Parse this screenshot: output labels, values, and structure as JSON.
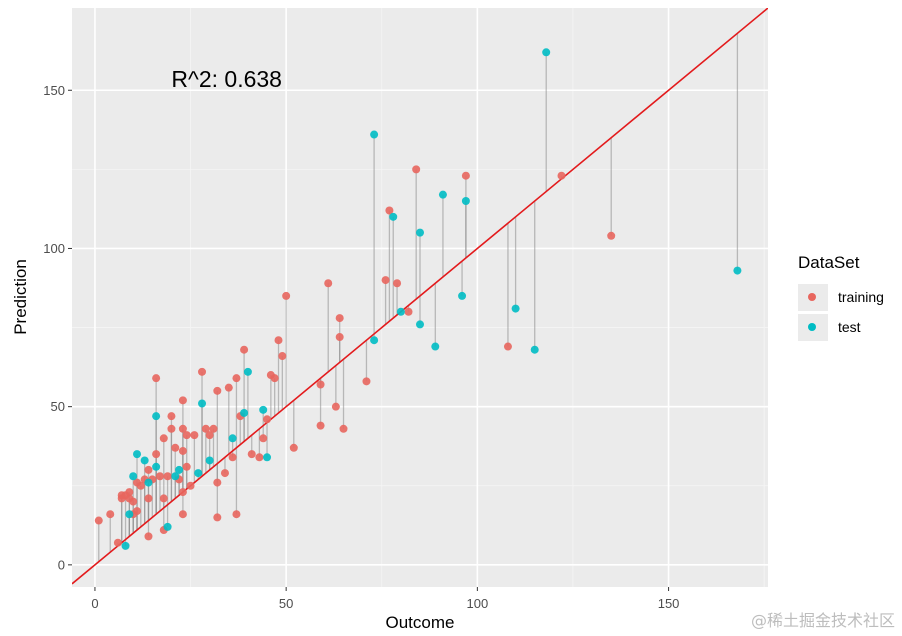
{
  "chart_data": {
    "type": "scatter",
    "xlabel": "Outcome",
    "ylabel": "Prediction",
    "xlim": [
      -6,
      176
    ],
    "ylim": [
      -7,
      176
    ],
    "x_ticks": [
      0,
      50,
      100,
      150
    ],
    "x_tick_labels": [
      "0",
      "50",
      "100",
      "150"
    ],
    "y_ticks": [
      0,
      50,
      100,
      150
    ],
    "y_tick_labels": [
      "0",
      "50",
      "100",
      "150"
    ],
    "annotation": {
      "text": "R^2: 0.638",
      "x": 20,
      "y": 151
    },
    "reference_line": {
      "type": "identity",
      "color": "#e31a1c"
    },
    "residual_segments": true,
    "grid": true,
    "legend": {
      "title": "DataSet",
      "position": "right",
      "entries": [
        {
          "label": "training",
          "color": "#e8665e"
        },
        {
          "label": "test",
          "color": "#00bcc4"
        }
      ]
    },
    "series": [
      {
        "name": "training",
        "color": "#e8665e",
        "points": [
          [
            1,
            14
          ],
          [
            4,
            16
          ],
          [
            6,
            7
          ],
          [
            7,
            22
          ],
          [
            7,
            21
          ],
          [
            8,
            22
          ],
          [
            9,
            21
          ],
          [
            9,
            23
          ],
          [
            10,
            20
          ],
          [
            10,
            16
          ],
          [
            11,
            26
          ],
          [
            11,
            17
          ],
          [
            12,
            25
          ],
          [
            13,
            27
          ],
          [
            14,
            9
          ],
          [
            14,
            21
          ],
          [
            14,
            30
          ],
          [
            15,
            27
          ],
          [
            16,
            59
          ],
          [
            16,
            35
          ],
          [
            17,
            28
          ],
          [
            18,
            21
          ],
          [
            18,
            40
          ],
          [
            18,
            11
          ],
          [
            19,
            28
          ],
          [
            20,
            47
          ],
          [
            20,
            43
          ],
          [
            21,
            37
          ],
          [
            22,
            27
          ],
          [
            23,
            52
          ],
          [
            23,
            43
          ],
          [
            23,
            36
          ],
          [
            23,
            23
          ],
          [
            23,
            16
          ],
          [
            24,
            41
          ],
          [
            24,
            31
          ],
          [
            25,
            25
          ],
          [
            26,
            41
          ],
          [
            28,
            61
          ],
          [
            29,
            43
          ],
          [
            30,
            41
          ],
          [
            31,
            43
          ],
          [
            32,
            55
          ],
          [
            32,
            26
          ],
          [
            32,
            15
          ],
          [
            34,
            29
          ],
          [
            35,
            56
          ],
          [
            36,
            34
          ],
          [
            37,
            59
          ],
          [
            37,
            16
          ],
          [
            38,
            47
          ],
          [
            39,
            68
          ],
          [
            41,
            35
          ],
          [
            43,
            34
          ],
          [
            44,
            40
          ],
          [
            45,
            46
          ],
          [
            46,
            60
          ],
          [
            47,
            59
          ],
          [
            48,
            71
          ],
          [
            49,
            66
          ],
          [
            50,
            85
          ],
          [
            52,
            37
          ],
          [
            59,
            57
          ],
          [
            59,
            44
          ],
          [
            61,
            89
          ],
          [
            63,
            50
          ],
          [
            64,
            78
          ],
          [
            64,
            72
          ],
          [
            65,
            43
          ],
          [
            71,
            58
          ],
          [
            76,
            90
          ],
          [
            77,
            112
          ],
          [
            79,
            89
          ],
          [
            82,
            80
          ],
          [
            84,
            125
          ],
          [
            97,
            123
          ],
          [
            108,
            69
          ],
          [
            122,
            123
          ],
          [
            135,
            104
          ]
        ]
      },
      {
        "name": "test",
        "color": "#00bcc4",
        "points": [
          [
            8,
            6
          ],
          [
            9,
            16
          ],
          [
            10,
            28
          ],
          [
            11,
            35
          ],
          [
            13,
            33
          ],
          [
            14,
            26
          ],
          [
            16,
            47
          ],
          [
            16,
            31
          ],
          [
            19,
            12
          ],
          [
            21,
            28
          ],
          [
            22,
            30
          ],
          [
            27,
            29
          ],
          [
            28,
            51
          ],
          [
            30,
            33
          ],
          [
            36,
            40
          ],
          [
            39,
            48
          ],
          [
            40,
            61
          ],
          [
            44,
            49
          ],
          [
            45,
            34
          ],
          [
            73,
            136
          ],
          [
            73,
            71
          ],
          [
            78,
            110
          ],
          [
            80,
            80
          ],
          [
            85,
            105
          ],
          [
            85,
            76
          ],
          [
            89,
            69
          ],
          [
            91,
            117
          ],
          [
            96,
            85
          ],
          [
            97,
            115
          ],
          [
            110,
            81
          ],
          [
            115,
            68
          ],
          [
            118,
            162
          ],
          [
            168,
            93
          ]
        ]
      }
    ]
  },
  "watermark": "@稀土掘金技术社区"
}
